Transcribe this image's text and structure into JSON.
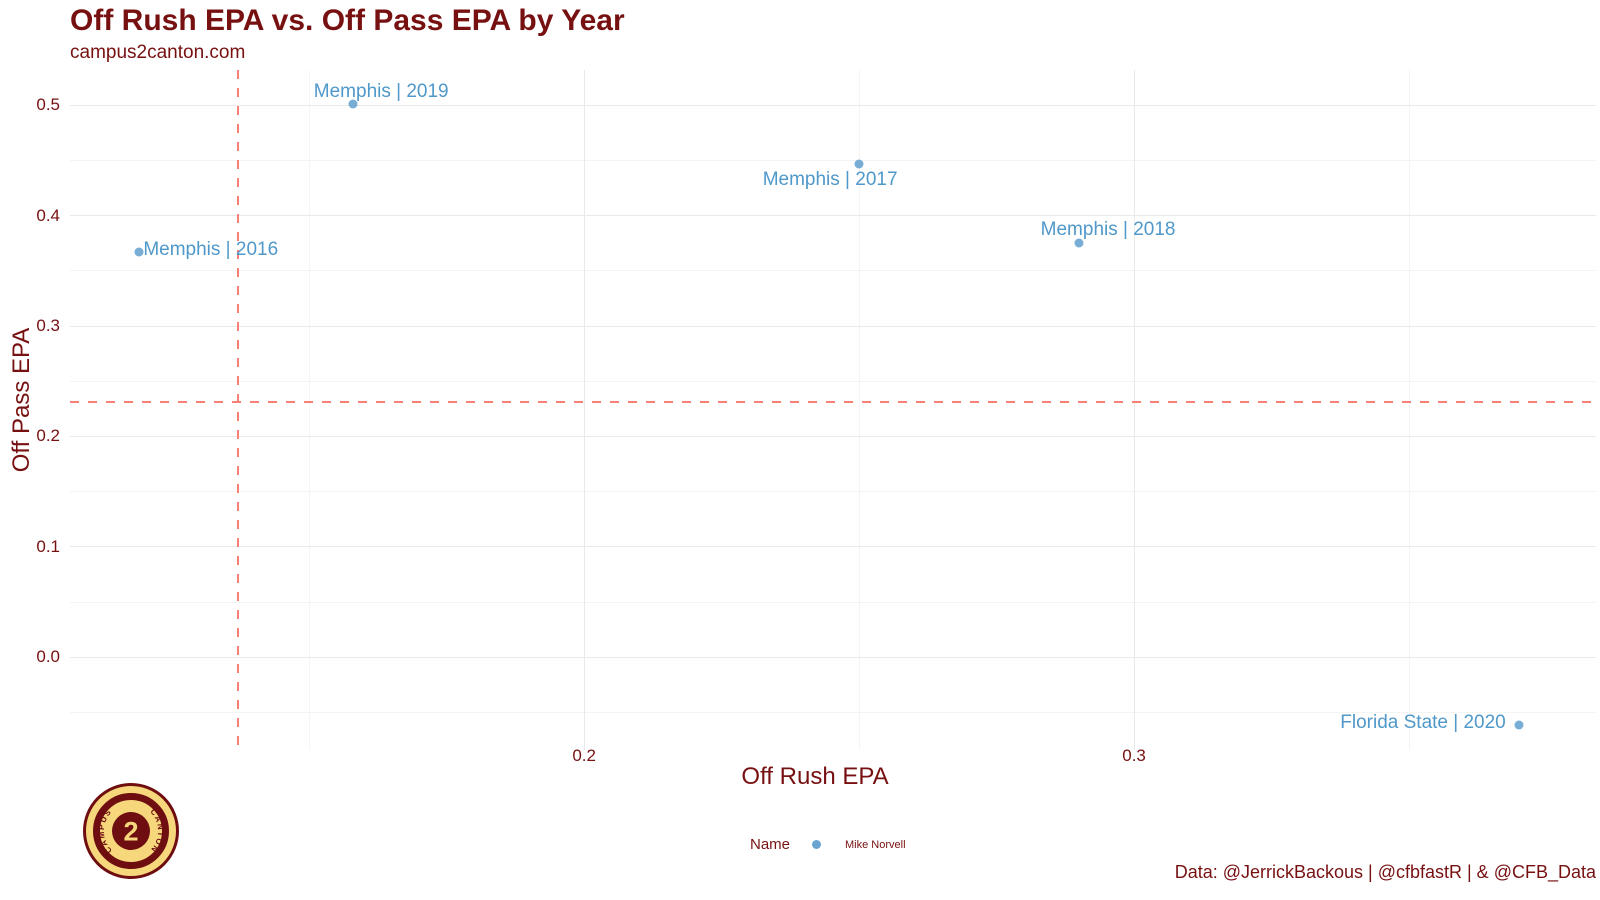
{
  "page": {
    "title": "Off Rush EPA vs. Off Pass EPA by Year",
    "subtitle": "campus2canton.com",
    "caption": "Data: @JerrickBackous | @cfbfastR | & @CFB_Data"
  },
  "legend": {
    "title": "Name",
    "entries": [
      {
        "label": "Mike Norvell",
        "color": "#69a5d0"
      }
    ]
  },
  "logo": {
    "left_text": "CAMPUS",
    "right_text": "CANTON",
    "center_text": "2",
    "gold": "#f7d77c",
    "maroon": "#6e0e10"
  },
  "colors": {
    "text_maroon": "#771111",
    "point_blue": "#69a5d0",
    "point_label_blue": "#4f98ca",
    "dashed_red": "#fa8075",
    "grid_major": "#e9e9e9",
    "grid_minor": "#f4f4f4",
    "background": "#ffffff"
  },
  "chart_data": {
    "type": "scatter",
    "title": "Off Rush EPA vs. Off Pass EPA by Year",
    "subtitle": "campus2canton.com",
    "xlabel": "Off Rush EPA",
    "ylabel": "Off Pass EPA",
    "xlim": [
      0.1065,
      0.384
    ],
    "ylim": [
      -0.084,
      0.532
    ],
    "x_ticks": [
      {
        "value": 0.2,
        "label": "0.2"
      },
      {
        "value": 0.3,
        "label": "0.3"
      }
    ],
    "y_ticks": [
      {
        "value": 0.0,
        "label": "0.0"
      },
      {
        "value": 0.1,
        "label": "0.1"
      },
      {
        "value": 0.2,
        "label": "0.2"
      },
      {
        "value": 0.3,
        "label": "0.3"
      },
      {
        "value": 0.4,
        "label": "0.4"
      },
      {
        "value": 0.5,
        "label": "0.5"
      }
    ],
    "x_minor": [
      0.15,
      0.25,
      0.35
    ],
    "y_minor": [
      -0.05,
      0.05,
      0.15,
      0.25,
      0.35,
      0.45
    ],
    "grid": true,
    "reference_lines": {
      "vline_x": 0.137,
      "hline_y": 0.231,
      "style": "dashed",
      "color": "#fa8075"
    },
    "legend_position": "bottom",
    "series": [
      {
        "name": "Mike Norvell",
        "color": "#69a5d0",
        "points": [
          {
            "label": "Memphis | 2016",
            "x": 0.119,
            "y": 0.367,
            "label_dx": 72,
            "label_dy": -2
          },
          {
            "label": "Memphis | 2017",
            "x": 0.25,
            "y": 0.447,
            "label_dx": -29,
            "label_dy": 16
          },
          {
            "label": "Memphis | 2018",
            "x": 0.29,
            "y": 0.375,
            "label_dx": 29,
            "label_dy": -13
          },
          {
            "label": "Memphis | 2019",
            "x": 0.158,
            "y": 0.501,
            "label_dx": 28,
            "label_dy": -12
          },
          {
            "label": "Florida State | 2020",
            "x": 0.37,
            "y": -0.061,
            "label_dx": -96,
            "label_dy": -2
          }
        ]
      }
    ]
  }
}
